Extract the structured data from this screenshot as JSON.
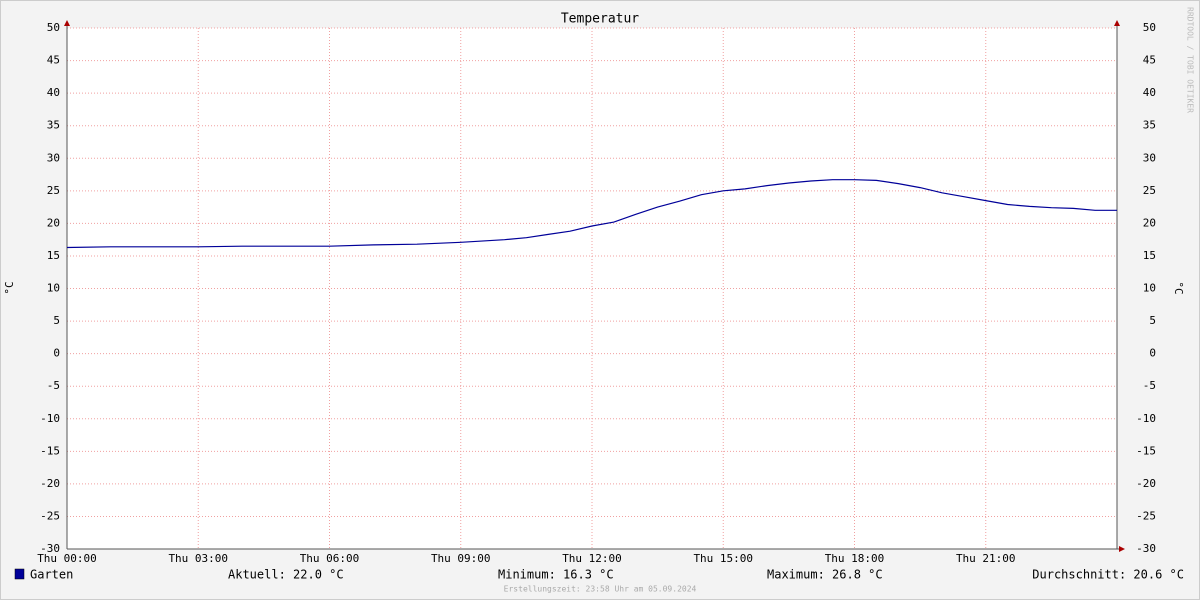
{
  "chart_data": {
    "type": "line",
    "title": "Temperatur",
    "ylabel": "°C",
    "y2label": "°C",
    "watermark": "RRDTOOL / TOBI OETIKER",
    "x": [
      0,
      1,
      2,
      3,
      4,
      5,
      6,
      7,
      8,
      9,
      10,
      10.5,
      11,
      11.5,
      12,
      12.5,
      13,
      13.5,
      14,
      14.5,
      15,
      15.5,
      16,
      16.5,
      17,
      17.5,
      18,
      18.5,
      19,
      19.5,
      20,
      20.5,
      21,
      21.5,
      22,
      22.5,
      23,
      23.5,
      24
    ],
    "series": [
      {
        "name": "Garten",
        "color": "#000099",
        "values": [
          16.3,
          16.4,
          16.4,
          16.4,
          16.5,
          16.5,
          16.5,
          16.7,
          16.8,
          17.1,
          17.5,
          17.8,
          18.3,
          18.8,
          19.6,
          20.2,
          21.4,
          22.5,
          23.4,
          24.4,
          25.0,
          25.3,
          25.8,
          26.2,
          26.5,
          26.7,
          26.7,
          26.6,
          26.1,
          25.5,
          24.7,
          24.1,
          23.5,
          22.9,
          22.6,
          22.4,
          22.3,
          22.0,
          22.0
        ]
      }
    ],
    "xlim": [
      0,
      24
    ],
    "xticks": [
      {
        "value": 0,
        "label": "Thu 00:00"
      },
      {
        "value": 3,
        "label": "Thu 03:00"
      },
      {
        "value": 6,
        "label": "Thu 06:00"
      },
      {
        "value": 9,
        "label": "Thu 09:00"
      },
      {
        "value": 12,
        "label": "Thu 12:00"
      },
      {
        "value": 15,
        "label": "Thu 15:00"
      },
      {
        "value": 18,
        "label": "Thu 18:00"
      },
      {
        "value": 21,
        "label": "Thu 21:00"
      }
    ],
    "ylim": [
      -30,
      50
    ],
    "yticks": [
      -30,
      -25,
      -20,
      -15,
      -10,
      -5,
      0,
      5,
      10,
      15,
      20,
      25,
      30,
      35,
      40,
      45,
      50
    ],
    "y2lim": [
      -30,
      50
    ],
    "y2ticks": [
      -30,
      -25,
      -20,
      -15,
      -10,
      -5,
      0,
      5,
      10,
      15,
      20,
      25,
      30,
      35,
      40,
      45,
      50
    ],
    "grid": true,
    "stats": [
      "Aktuell: 22.0 °C",
      "Minimum: 16.3 °C",
      "Maximum: 26.8 °C",
      "Durchschnitt: 20.6 °C"
    ],
    "footer": "Erstellungszeit: 23:58 Uhr am 05.09.2024"
  }
}
